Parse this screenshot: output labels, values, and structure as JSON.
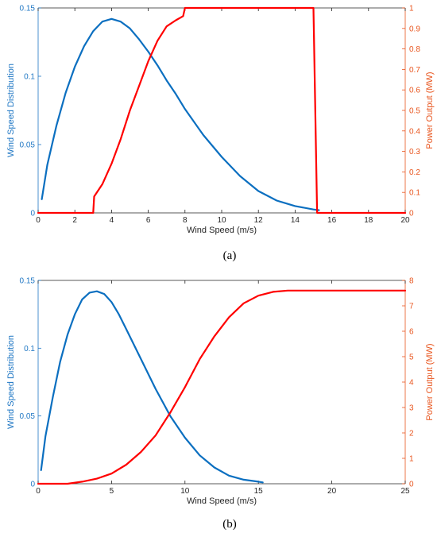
{
  "colors": {
    "left_axis": "#1f77c4",
    "right_axis": "#e8551e",
    "blue_series": "#0b6fc0",
    "red_series": "#ff0000"
  },
  "chart_data": [
    {
      "type": "line",
      "caption": "(a)",
      "xlabel": "Wind Speed (m/s)",
      "ylabel_left": "Wind Speed Distribution",
      "ylabel_right": "Power Output (MW)",
      "xlim": [
        0,
        20
      ],
      "ylim_left": [
        0,
        0.15
      ],
      "ylim_right": [
        0,
        1
      ],
      "x_ticks": [
        0,
        2,
        4,
        6,
        8,
        10,
        12,
        14,
        16,
        18,
        20
      ],
      "x_tick_labels": [
        "0",
        "2",
        "4",
        "6",
        "8",
        "10",
        "12",
        "14",
        "16",
        "18",
        "20"
      ],
      "y_left_ticks": [
        0,
        0.05,
        0.1,
        0.15
      ],
      "y_left_tick_labels": [
        "0",
        "0.05",
        "0.1",
        "0.15"
      ],
      "y_right_ticks": [
        0,
        0.1,
        0.2,
        0.3,
        0.4,
        0.5,
        0.6,
        0.7,
        0.8,
        0.9,
        1
      ],
      "y_right_tick_labels": [
        "0",
        "0.1",
        "0.2",
        "0.3",
        "0.4",
        "0.5",
        "0.6",
        "0.7",
        "0.8",
        "0.9",
        "1"
      ],
      "grid": false,
      "series": [
        {
          "axis": "left",
          "color": "#0b6fc0",
          "x": [
            0.2,
            0.5,
            1,
            1.5,
            2,
            2.5,
            3,
            3.5,
            4,
            4.5,
            5,
            5.5,
            6,
            6.5,
            7,
            7.5,
            8,
            9,
            10,
            11,
            12,
            13,
            14,
            15,
            15.3
          ],
          "y": [
            0.01,
            0.035,
            0.064,
            0.088,
            0.107,
            0.122,
            0.133,
            0.14,
            0.142,
            0.14,
            0.135,
            0.127,
            0.118,
            0.108,
            0.097,
            0.087,
            0.076,
            0.057,
            0.041,
            0.027,
            0.016,
            0.009,
            0.005,
            0.0025,
            0.002
          ]
        },
        {
          "axis": "right",
          "color": "#ff0000",
          "x": [
            0,
            2.9,
            3,
            3.05,
            3.5,
            4,
            4.5,
            5,
            5.5,
            6,
            6.5,
            7,
            7.5,
            7.9,
            8,
            15,
            15.2,
            20
          ],
          "y": [
            0,
            0,
            0,
            0.08,
            0.14,
            0.24,
            0.36,
            0.5,
            0.62,
            0.74,
            0.84,
            0.91,
            0.94,
            0.96,
            1,
            1,
            0,
            0
          ]
        }
      ]
    },
    {
      "type": "line",
      "caption": "(b)",
      "xlabel": "Wind Speed (m/s)",
      "ylabel_left": "Wind Speed Distribution",
      "ylabel_right": "Power Output (MW)",
      "xlim": [
        0,
        25
      ],
      "ylim_left": [
        0,
        0.15
      ],
      "ylim_right": [
        0,
        8
      ],
      "x_ticks": [
        0,
        5,
        10,
        15,
        20,
        25
      ],
      "x_tick_labels": [
        "0",
        "5",
        "10",
        "15",
        "20",
        "25"
      ],
      "y_left_ticks": [
        0,
        0.05,
        0.1,
        0.15
      ],
      "y_left_tick_labels": [
        "0",
        "0.05",
        "0.1",
        "0.15"
      ],
      "y_right_ticks": [
        0,
        1,
        2,
        3,
        4,
        5,
        6,
        7,
        8
      ],
      "y_right_tick_labels": [
        "0",
        "1",
        "2",
        "3",
        "4",
        "5",
        "6",
        "7",
        "8"
      ],
      "grid": false,
      "series": [
        {
          "axis": "left",
          "color": "#0b6fc0",
          "x": [
            0.2,
            0.5,
            1,
            1.5,
            2,
            2.5,
            3,
            3.5,
            4,
            4.5,
            5,
            5.5,
            6,
            7,
            8,
            9,
            10,
            11,
            12,
            13,
            14,
            15,
            15.3
          ],
          "y": [
            0.01,
            0.035,
            0.064,
            0.09,
            0.11,
            0.125,
            0.136,
            0.141,
            0.142,
            0.14,
            0.134,
            0.125,
            0.114,
            0.092,
            0.07,
            0.05,
            0.034,
            0.021,
            0.012,
            0.006,
            0.003,
            0.0015,
            0.001
          ]
        },
        {
          "axis": "right",
          "color": "#ff0000",
          "x": [
            0,
            2,
            3,
            4,
            5,
            6,
            7,
            8,
            9,
            10,
            11,
            12,
            13,
            14,
            15,
            16,
            17,
            18,
            20,
            25
          ],
          "y": [
            0,
            0,
            0.08,
            0.2,
            0.4,
            0.75,
            1.25,
            1.9,
            2.8,
            3.8,
            4.9,
            5.8,
            6.55,
            7.1,
            7.4,
            7.55,
            7.6,
            7.6,
            7.6,
            7.6
          ]
        }
      ]
    }
  ]
}
